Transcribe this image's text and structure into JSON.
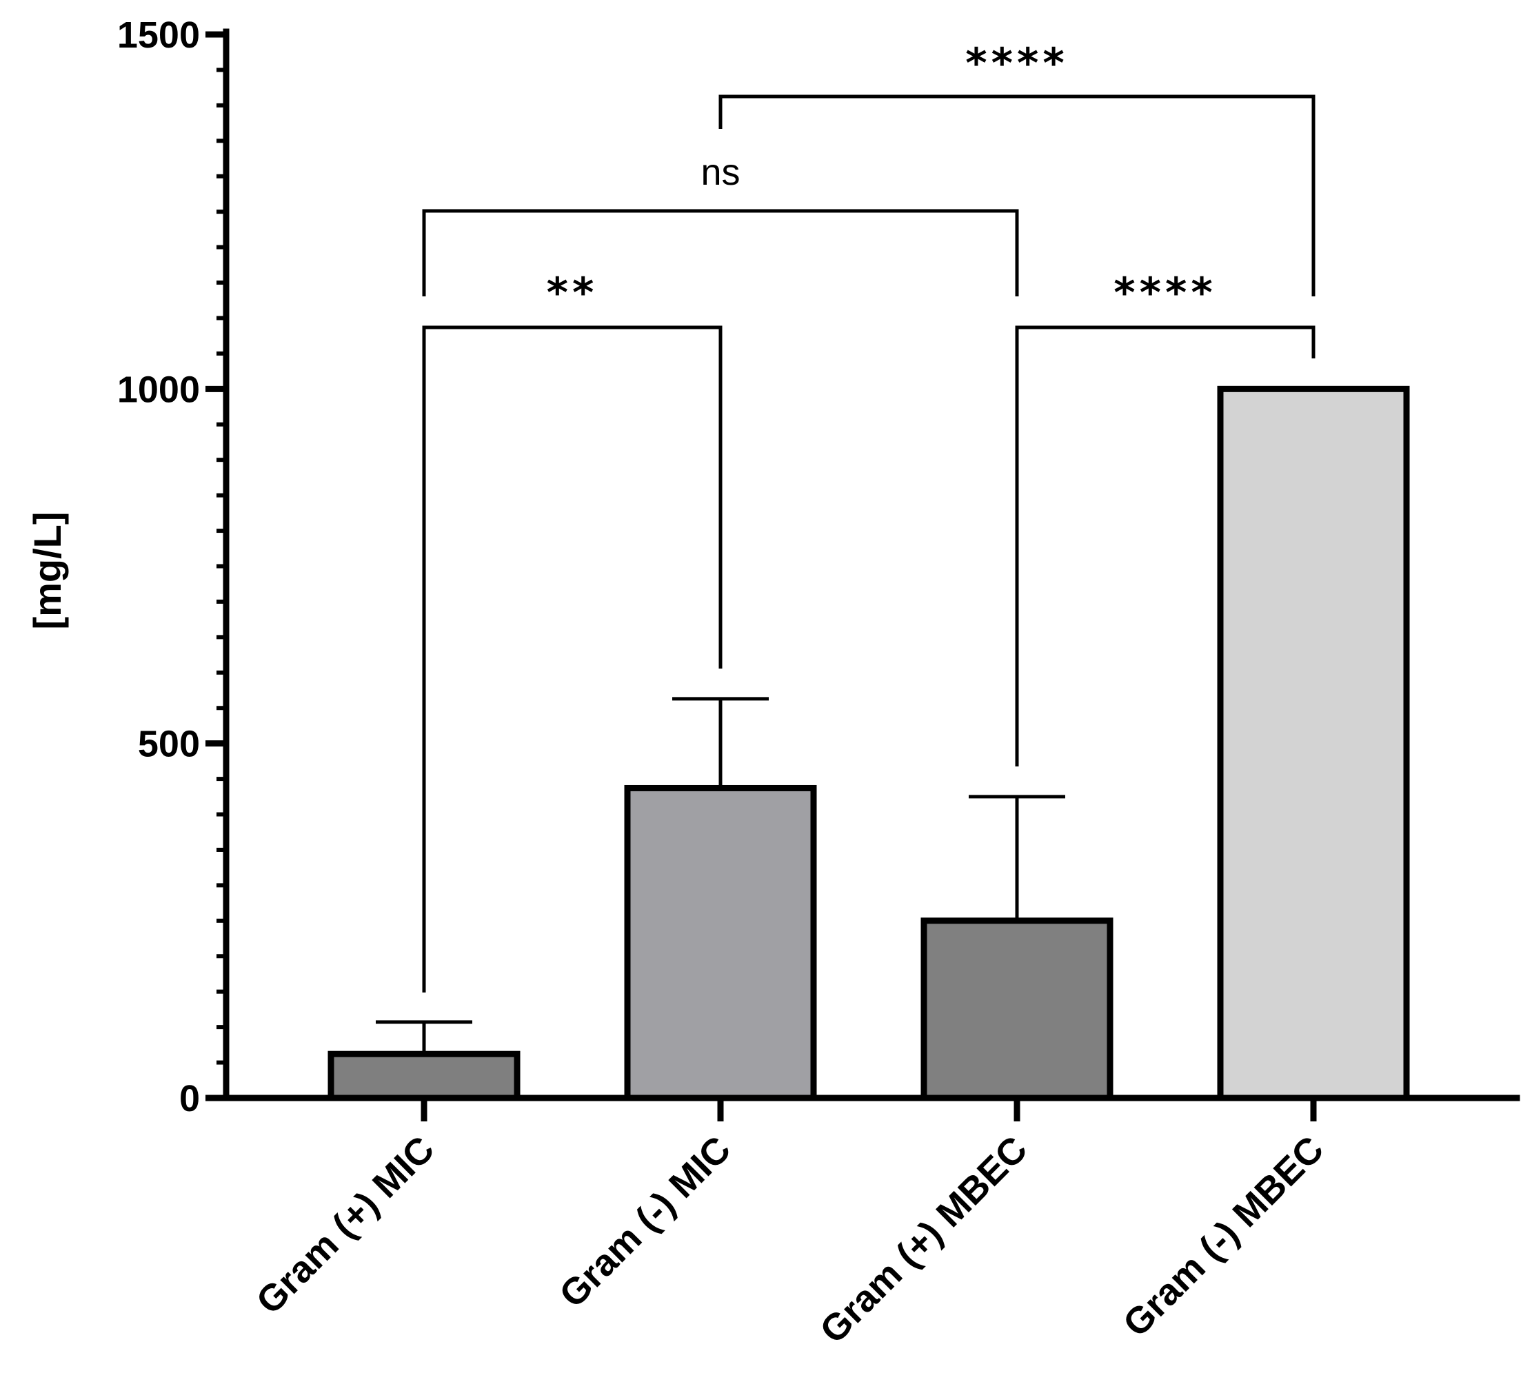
{
  "chart_data": {
    "type": "bar",
    "title": "",
    "xlabel": "",
    "ylabel": "[mg/L]",
    "ylim": [
      0,
      1500
    ],
    "yticks": [
      0,
      500,
      1000,
      1500
    ],
    "yticks_minor_step": 50,
    "grid": false,
    "categories": [
      "Gram (+) MIC",
      "Gram (-) MIC",
      "Gram (+) MBEC",
      "Gram (-) MBEC"
    ],
    "values": [
      62,
      437,
      250,
      1000
    ],
    "error_upper": [
      107,
      563,
      425,
      1000
    ],
    "bar_colors": [
      "#7f7f7f",
      "#a0a0a4",
      "#808080",
      "#d3d3d3"
    ],
    "comparisons": [
      {
        "from": 0,
        "to": 1,
        "label": "**"
      },
      {
        "from": 0,
        "to": 2,
        "label": "ns"
      },
      {
        "from": 2,
        "to": 3,
        "label": "****"
      },
      {
        "from": 1,
        "to": 3,
        "label": "****"
      }
    ]
  }
}
